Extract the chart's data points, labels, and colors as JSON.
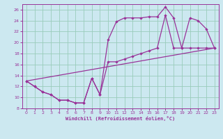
{
  "background_color": "#cce8f0",
  "grid_color": "#99ccbb",
  "line_color": "#993399",
  "spine_color": "#993399",
  "xlim": [
    -0.5,
    23.5
  ],
  "ylim": [
    8,
    27
  ],
  "xlabel": "Windchill (Refroidissement éolien,°C)",
  "xticks": [
    0,
    1,
    2,
    3,
    4,
    5,
    6,
    7,
    8,
    9,
    10,
    11,
    12,
    13,
    14,
    15,
    16,
    17,
    18,
    19,
    20,
    21,
    22,
    23
  ],
  "yticks": [
    8,
    10,
    12,
    14,
    16,
    18,
    20,
    22,
    24,
    26
  ],
  "line1_x": [
    0,
    1,
    2,
    3,
    4,
    5,
    6,
    7,
    8,
    9,
    10,
    11,
    12,
    13,
    14,
    15,
    16,
    17,
    18,
    19,
    20,
    21,
    22,
    23
  ],
  "line1_y": [
    13,
    12,
    11,
    10.5,
    9.5,
    9.5,
    9.0,
    9.0,
    13.5,
    10.5,
    20.5,
    23.8,
    24.5,
    24.5,
    24.5,
    24.7,
    24.7,
    26.5,
    24.5,
    19.0,
    24.5,
    24.0,
    22.5,
    19.0
  ],
  "line2_x": [
    0,
    1,
    2,
    3,
    4,
    5,
    6,
    7,
    8,
    9,
    10,
    11,
    12,
    13,
    14,
    15,
    16,
    17,
    18,
    19,
    20,
    21,
    22,
    23
  ],
  "line2_y": [
    13,
    12,
    11,
    10.5,
    9.5,
    9.5,
    9.0,
    9.0,
    13.5,
    10.5,
    16.5,
    16.5,
    17.0,
    17.5,
    18.0,
    18.5,
    19.0,
    25.0,
    19.0,
    19.0,
    19.0,
    19.0,
    19.0,
    19.0
  ],
  "line3_x": [
    0,
    23
  ],
  "line3_y": [
    13,
    19.0
  ],
  "marker": "D",
  "markersize": 2.2,
  "linewidth": 0.9
}
